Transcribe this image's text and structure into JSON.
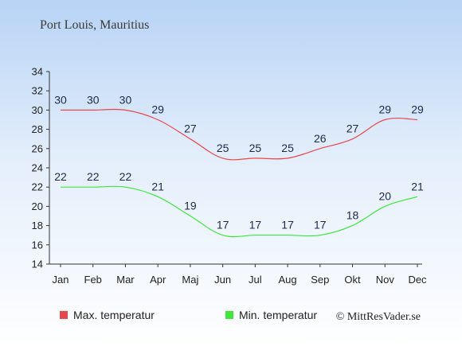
{
  "chart_data": {
    "type": "line",
    "title": "Port Louis, Mauritius",
    "categories": [
      "Jan",
      "Feb",
      "Mar",
      "Apr",
      "Maj",
      "Jun",
      "Jul",
      "Aug",
      "Sep",
      "Okt",
      "Nov",
      "Dec"
    ],
    "series": [
      {
        "name": "Max. temperatur",
        "color": "#e8474b",
        "values": [
          30,
          30,
          30,
          29,
          27,
          25,
          25,
          25,
          26,
          27,
          29,
          29
        ]
      },
      {
        "name": "Min. temperatur",
        "color": "#3ee83a",
        "values": [
          22,
          22,
          22,
          21,
          19,
          17,
          17,
          17,
          17,
          18,
          20,
          21
        ]
      }
    ],
    "ylim": [
      14,
      34
    ],
    "yticks": [
      14,
      16,
      18,
      20,
      22,
      24,
      26,
      28,
      30,
      32,
      34
    ],
    "grid": false,
    "legend": "bottom-left",
    "credit": "© MittResVader.se"
  }
}
